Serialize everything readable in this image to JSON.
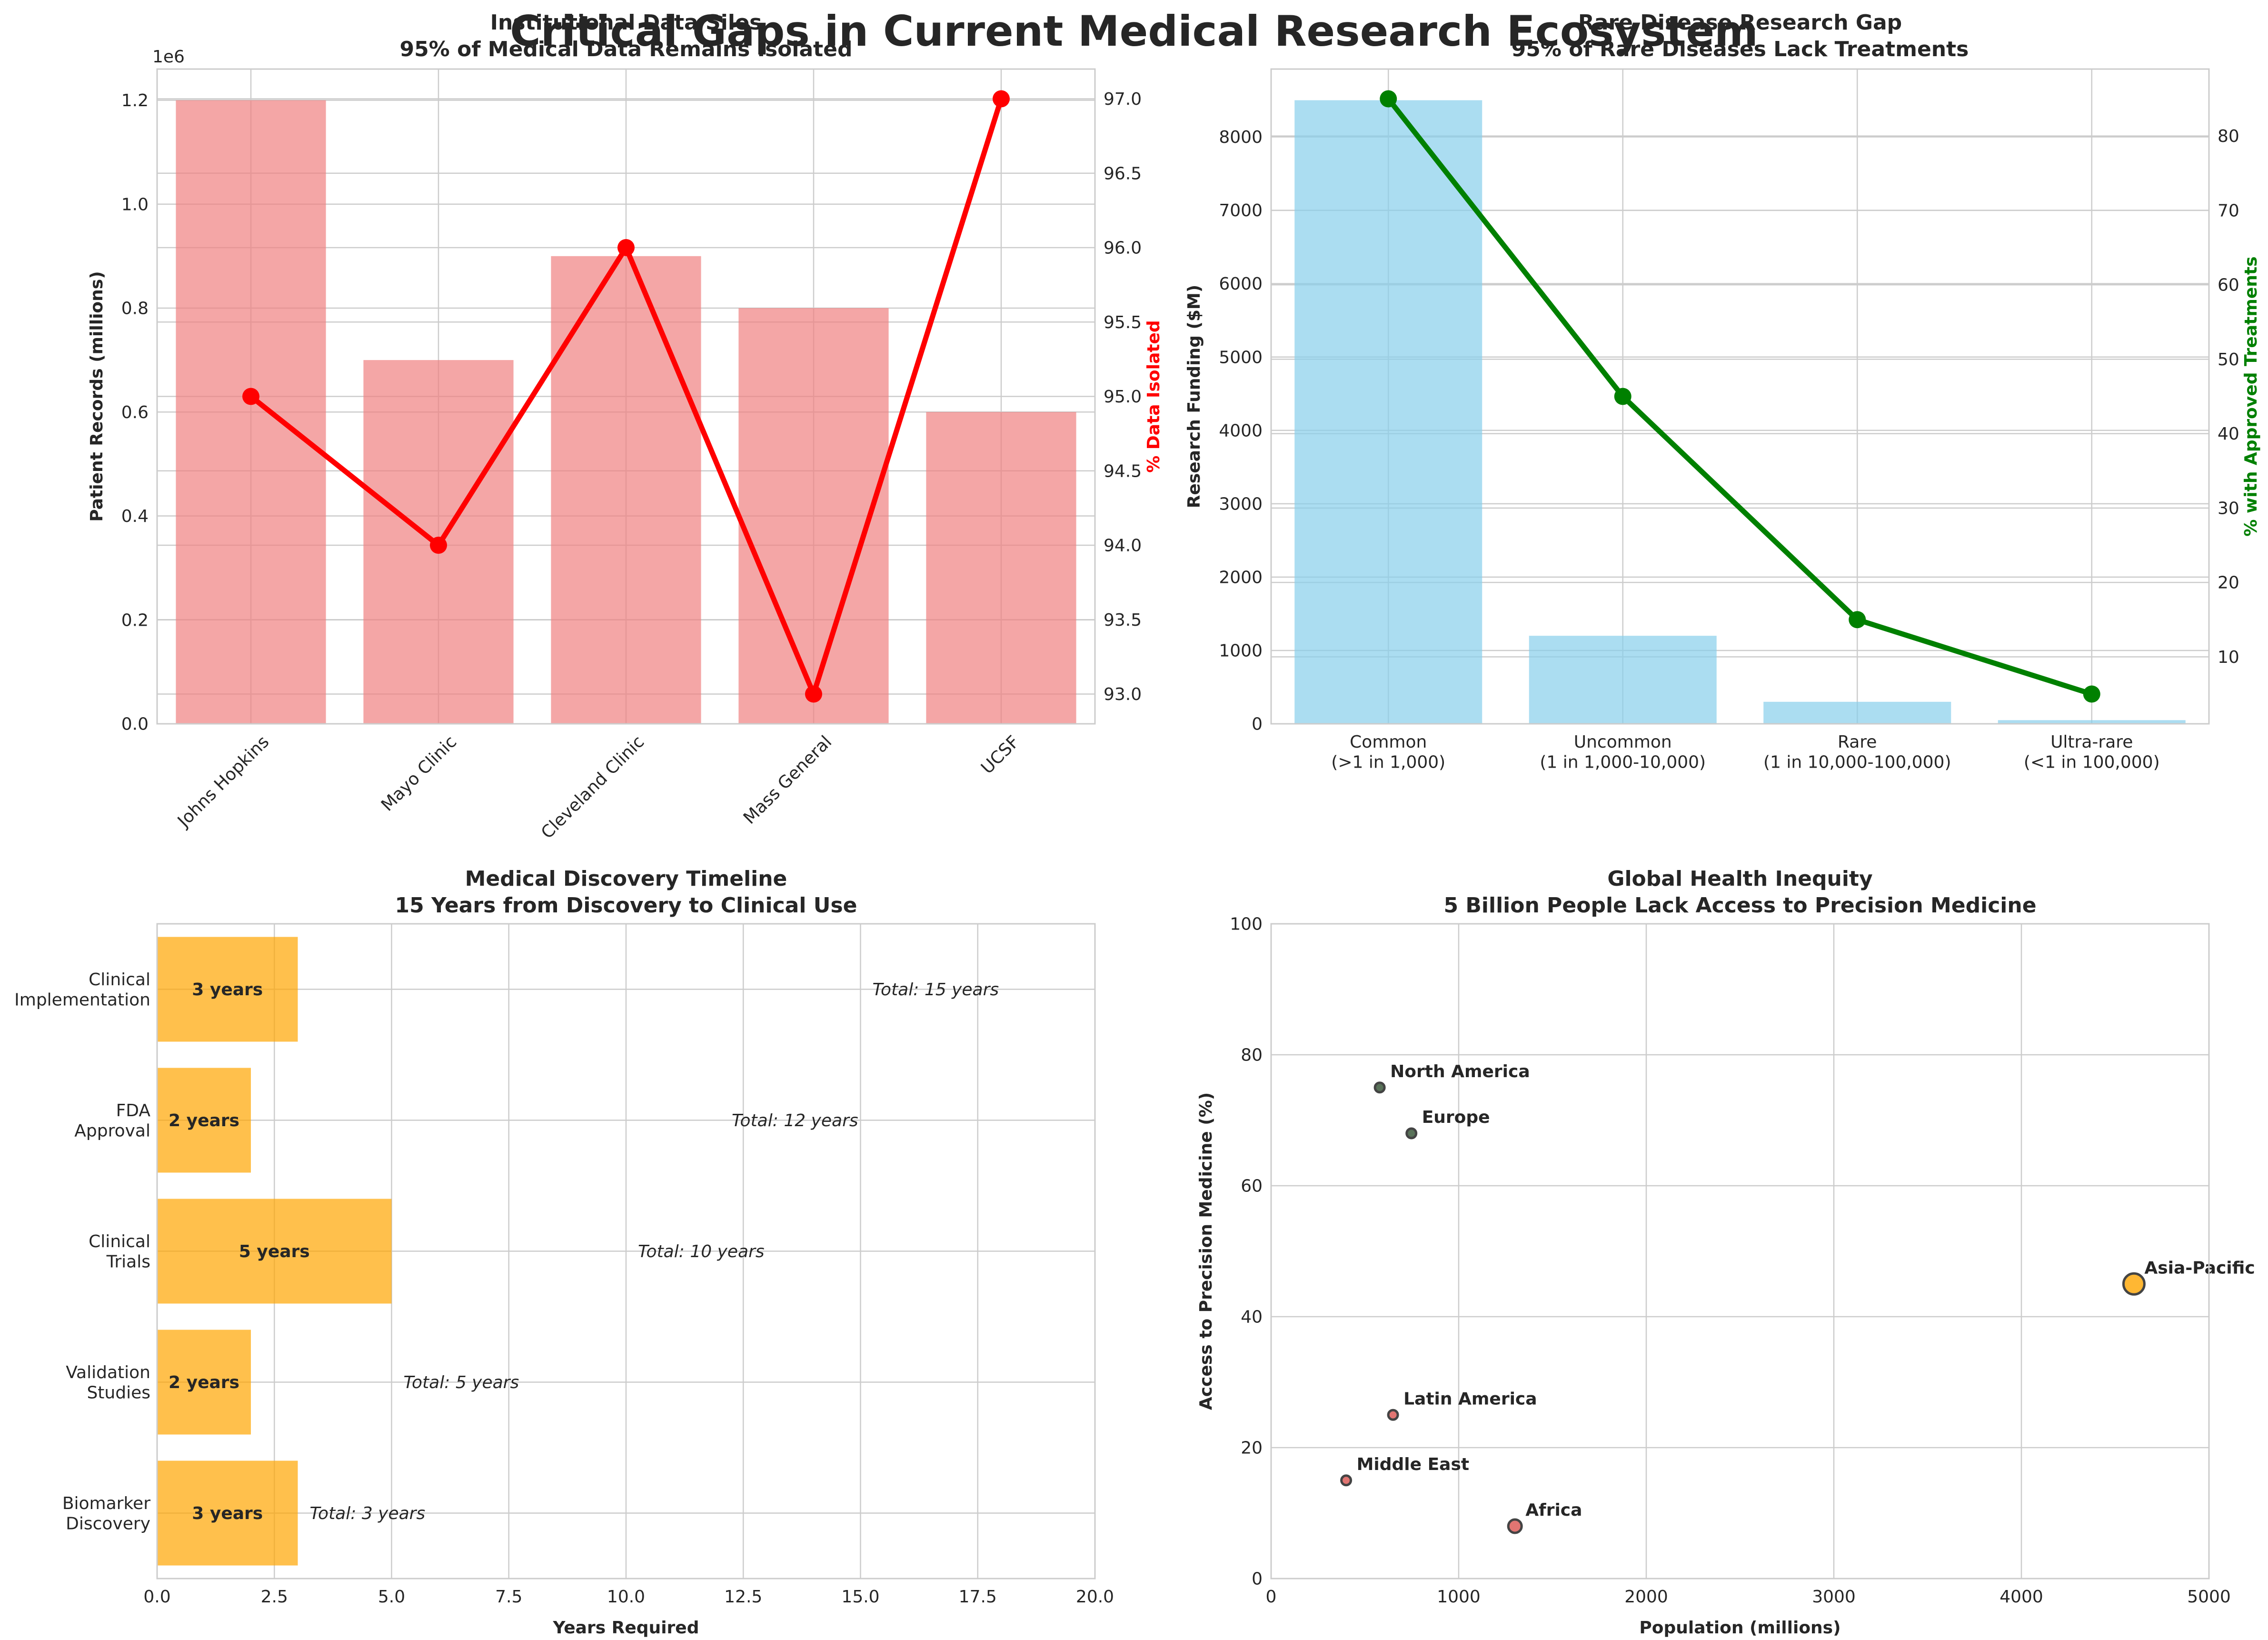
{
  "figure": {
    "suptitle": "Critical Gaps in Current Medical Research Ecosystem"
  },
  "chart_data": [
    {
      "type": "bar",
      "title": "Institutional Data Silos",
      "subtitle": "95% of Medical Data Remains Isolated",
      "categories": [
        "Johns Hopkins",
        "Mayo Clinic",
        "Cleveland Clinic",
        "Mass General",
        "UCSF"
      ],
      "series": [
        {
          "values": [
            1200000,
            700000,
            900000,
            800000,
            600000
          ],
          "color": "#f08080",
          "axis": "left"
        },
        {
          "type": "line",
          "values": [
            95.0,
            94.0,
            96.0,
            93.0,
            97.0
          ],
          "color": "#ff0000",
          "axis": "right"
        }
      ],
      "ylabel": "Patient Records (millions)",
      "y_offset_label": "1e6",
      "ylim": [
        0,
        1260000
      ],
      "yticks": [
        "0.0",
        "0.2",
        "0.4",
        "0.6",
        "0.8",
        "1.0",
        "1.2"
      ],
      "y2label": "% Data Isolated",
      "y2label_color": "#ff0000",
      "y2lim": [
        92.8,
        97.2
      ],
      "y2ticks": [
        "93.0",
        "93.5",
        "94.0",
        "94.5",
        "95.0",
        "95.5",
        "96.0",
        "96.5",
        "97.0"
      ],
      "grid": true
    },
    {
      "type": "bar",
      "title": "Rare Disease Research Gap",
      "subtitle": "95% of Rare Diseases Lack Treatments",
      "categories": [
        "Common\n(>1 in 1,000)",
        "Uncommon\n(1 in 1,000-10,000)",
        "Rare\n(1 in 10,000-100,000)",
        "Ultra-rare\n(<1 in 100,000)"
      ],
      "series": [
        {
          "values": [
            8500,
            1200,
            300,
            50
          ],
          "color": "#87ceeb",
          "axis": "left"
        },
        {
          "type": "line",
          "values": [
            85,
            45,
            15,
            5
          ],
          "color": "#008000",
          "axis": "right"
        }
      ],
      "ylabel": "Research Funding ($M)",
      "ylim": [
        0,
        8925
      ],
      "yticks": [
        "0",
        "1000",
        "2000",
        "3000",
        "4000",
        "5000",
        "6000",
        "7000",
        "8000"
      ],
      "y2label": "% with Approved Treatments",
      "y2label_color": "#008000",
      "y2lim": [
        1,
        89
      ],
      "y2ticks": [
        "10",
        "20",
        "30",
        "40",
        "50",
        "60",
        "70",
        "80"
      ],
      "grid": true
    },
    {
      "type": "bar",
      "orientation": "horizontal",
      "title": "Medical Discovery Timeline",
      "subtitle": "15 Years from Discovery to Clinical Use",
      "categories": [
        "Biomarker\nDiscovery",
        "Validation\nStudies",
        "Clinical\nTrials",
        "FDA\nApproval",
        "Clinical\nImplementation"
      ],
      "values": [
        3,
        2,
        5,
        2,
        3
      ],
      "cumulative": [
        3,
        5,
        10,
        12,
        15
      ],
      "bar_labels": [
        "3 years",
        "2 years",
        "5 years",
        "2 years",
        "3 years"
      ],
      "total_labels": [
        "Total: 3 years",
        "Total: 5 years",
        "Total: 10 years",
        "Total: 12 years",
        "Total: 15 years"
      ],
      "color": "#ffa500",
      "xlabel": "Years Required",
      "xlim": [
        0,
        20
      ],
      "xticks": [
        "0.0",
        "2.5",
        "5.0",
        "7.5",
        "10.0",
        "12.5",
        "15.0",
        "17.5",
        "20.0"
      ],
      "grid": true
    },
    {
      "type": "scatter",
      "title": "Global Health Inequity",
      "subtitle": "5 Billion People Lack Access to Precision Medicine",
      "points": [
        {
          "label": "North America",
          "x": 579,
          "y": 75,
          "color": "#2f4f2f"
        },
        {
          "label": "Europe",
          "x": 748,
          "y": 68,
          "color": "#2f4f2f"
        },
        {
          "label": "Asia-Pacific",
          "x": 4600,
          "y": 45,
          "color": "#ffa500"
        },
        {
          "label": "Latin America",
          "x": 650,
          "y": 25,
          "color": "#d9534f"
        },
        {
          "label": "Middle East",
          "x": 400,
          "y": 15,
          "color": "#d9534f"
        },
        {
          "label": "Africa",
          "x": 1300,
          "y": 8,
          "color": "#d9534f"
        }
      ],
      "xlabel": "Population (millions)",
      "ylabel": "Access to Precision Medicine (%)",
      "xlim": [
        0,
        5000
      ],
      "ylim": [
        0,
        100
      ],
      "xticks": [
        "0",
        "1000",
        "2000",
        "3000",
        "4000",
        "5000"
      ],
      "yticks": [
        "0",
        "20",
        "40",
        "60",
        "80",
        "100"
      ],
      "grid": true
    }
  ]
}
